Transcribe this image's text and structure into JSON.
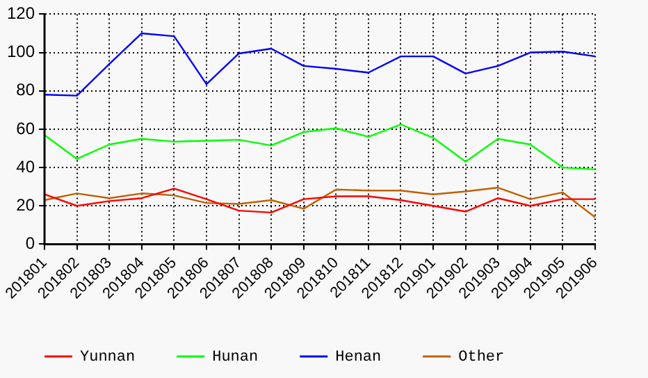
{
  "chart_data": {
    "type": "line",
    "categories": [
      "201801",
      "201802",
      "201803",
      "201804",
      "201805",
      "201806",
      "201807",
      "201808",
      "201809",
      "201810",
      "201811",
      "201812",
      "201901",
      "201902",
      "201903",
      "201904",
      "201905",
      "201906"
    ],
    "series": [
      {
        "name": "Yunnan",
        "color": "#ff0000",
        "values": [
          26,
          20,
          22.5,
          24,
          29,
          23.5,
          17.5,
          16.5,
          23.5,
          25,
          25,
          23,
          20,
          17,
          24,
          20,
          23.5,
          23.5
        ]
      },
      {
        "name": "Hunan",
        "color": "#00ff00",
        "values": [
          57,
          44.5,
          52,
          55,
          53.5,
          54,
          54.5,
          51.5,
          58.5,
          60.5,
          56,
          62.5,
          55.5,
          43,
          55,
          52,
          40,
          39
        ]
      },
      {
        "name": "Henan",
        "color": "#0000ff",
        "values": [
          78,
          77.5,
          94,
          110,
          108.5,
          83.5,
          99.5,
          102,
          93,
          91.5,
          89.5,
          98,
          98,
          89,
          93,
          100,
          100.5,
          98
        ]
      },
      {
        "name": "Other",
        "color": "#c06000",
        "values": [
          23,
          26.5,
          24,
          26.5,
          25.5,
          21.5,
          21,
          23,
          18.5,
          28.5,
          28,
          28,
          26,
          27.5,
          29.5,
          23.5,
          27,
          14
        ]
      }
    ],
    "ylim": [
      0,
      120
    ],
    "yticks": [
      0,
      20,
      40,
      60,
      80,
      100,
      120
    ],
    "grid": true,
    "legend": "bottom",
    "marker": "none",
    "line_style": "solid"
  }
}
